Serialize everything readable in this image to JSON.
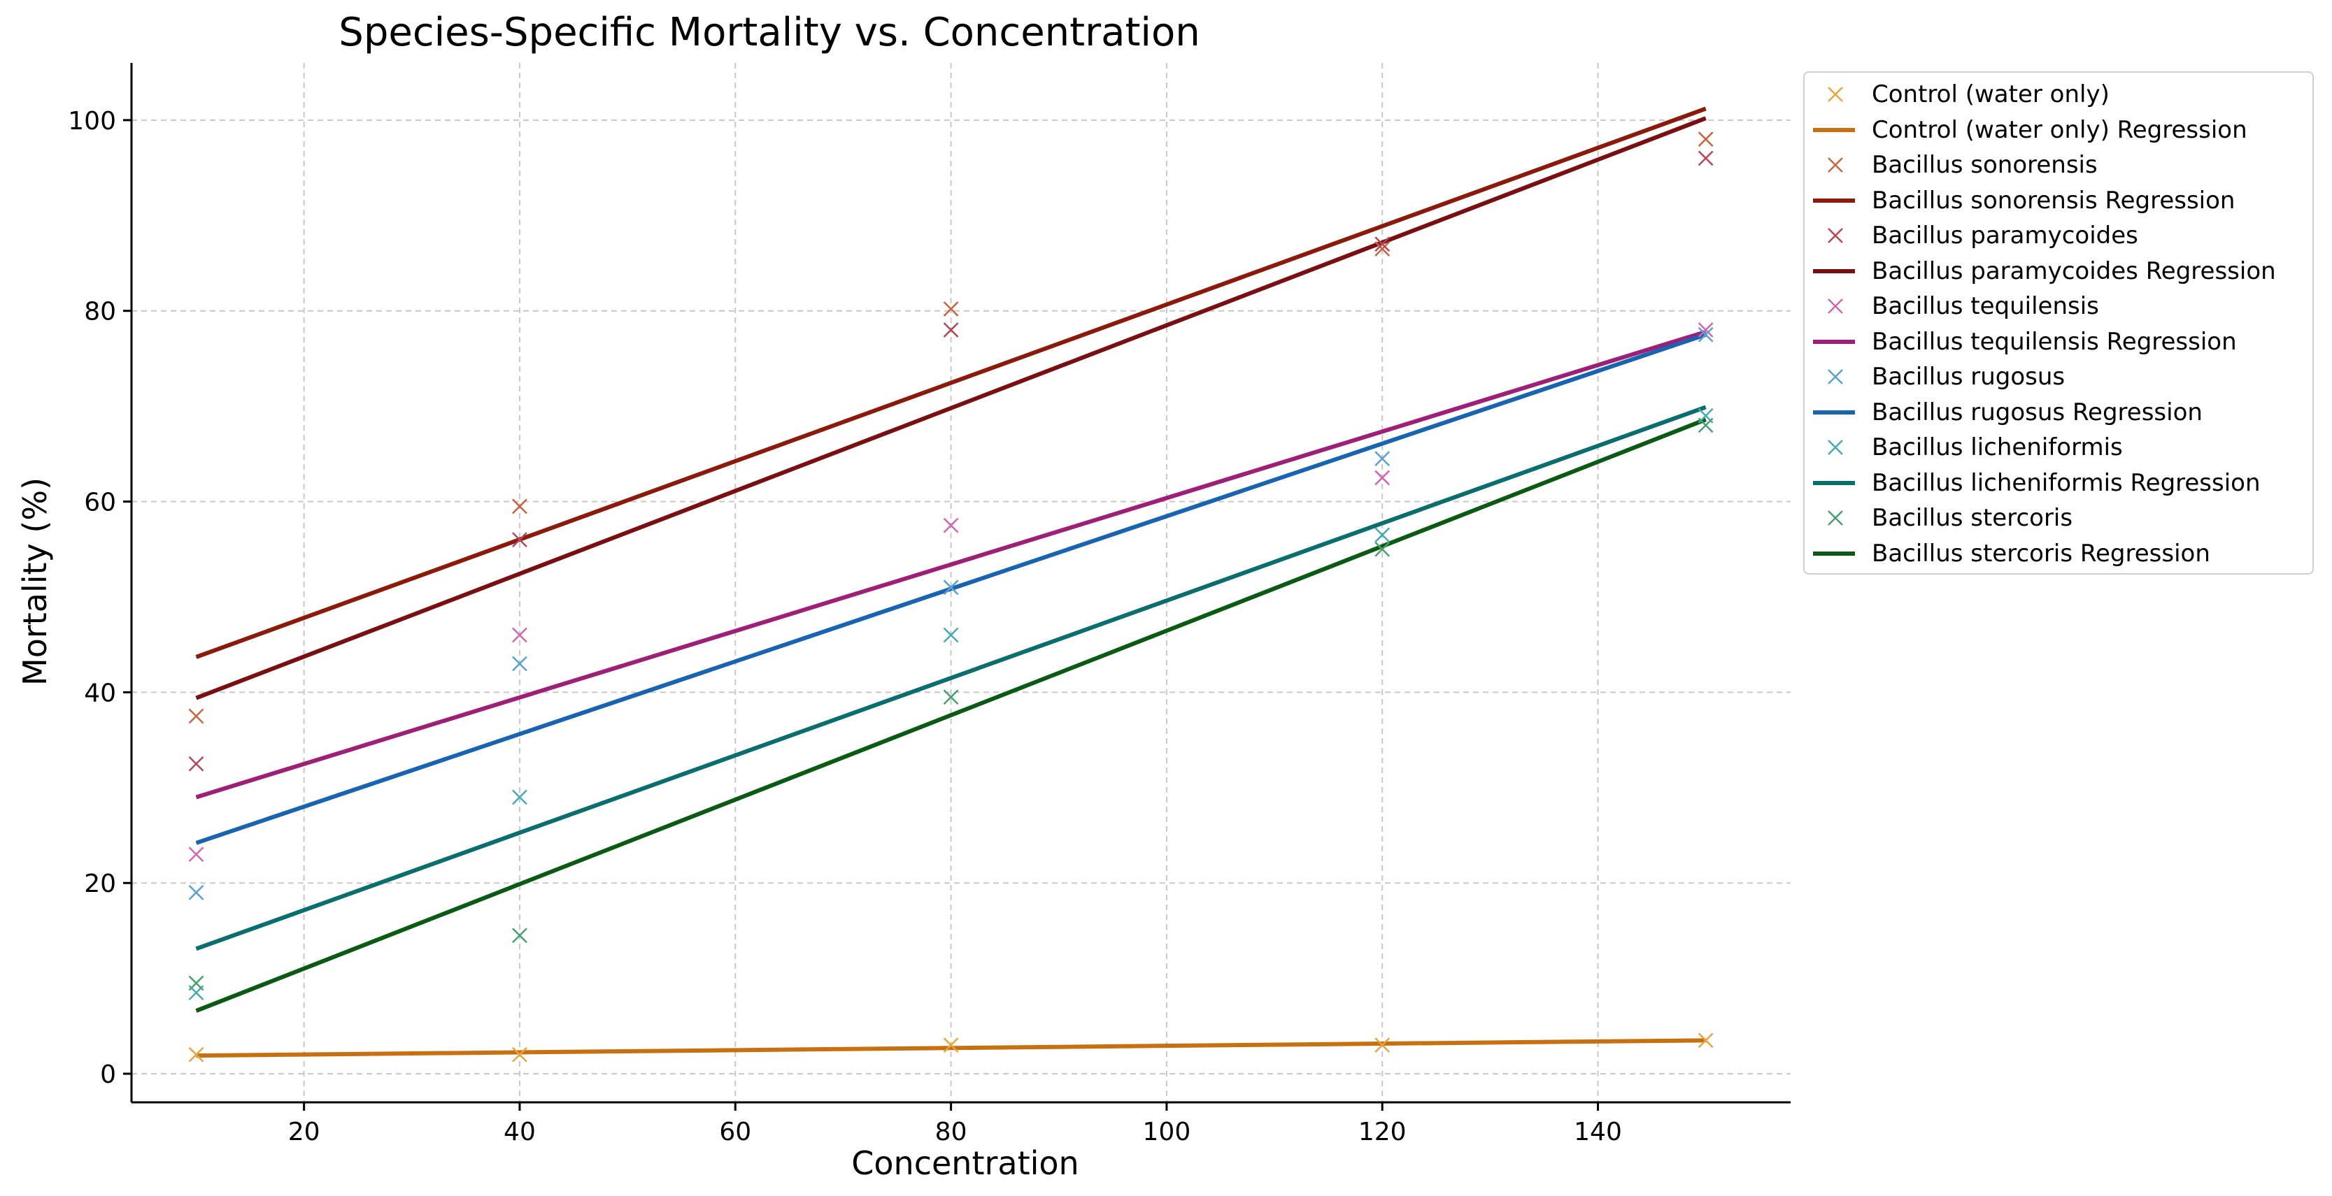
{
  "chart_data": {
    "type": "scatter",
    "title": "Species-Specific Mortality vs. Concentration",
    "xlabel": "Concentration",
    "ylabel": "Mortality (%)",
    "xlim": [
      4,
      158
    ],
    "ylim": [
      -3,
      106
    ],
    "xticks": [
      20,
      40,
      60,
      80,
      100,
      120,
      140
    ],
    "yticks": [
      0,
      20,
      40,
      60,
      80,
      100
    ],
    "grid": true,
    "legend_position": "outside-right",
    "x": [
      10,
      40,
      80,
      120,
      150
    ],
    "series": [
      {
        "name": "Control (water only)",
        "color": "#e8a33d",
        "line_color": "#c87010",
        "values": [
          2,
          2,
          3,
          3,
          3.5
        ],
        "regression": [
          1.9,
          3.5
        ]
      },
      {
        "name": "Bacillus sonorensis",
        "color": "#c8643c",
        "line_color": "#8b1a0a",
        "values": [
          37.5,
          59.5,
          80.2,
          86.5,
          98
        ],
        "regression": [
          43.7,
          101.2
        ]
      },
      {
        "name": "Bacillus paramycoides",
        "color": "#b4465a",
        "line_color": "#7a0f12",
        "values": [
          32.5,
          56,
          78,
          87,
          96
        ],
        "regression": [
          39.4,
          100.2
        ]
      },
      {
        "name": "Bacillus tequilensis",
        "color": "#d066b4",
        "line_color": "#9e1f78",
        "values": [
          23,
          46,
          57.5,
          62.5,
          78
        ],
        "regression": [
          29,
          77.8
        ]
      },
      {
        "name": "Bacillus rugosus",
        "color": "#5aa0d2",
        "line_color": "#1864b0",
        "values": [
          19,
          43,
          51,
          64.5,
          77.5
        ],
        "regression": [
          24.2,
          77.5
        ]
      },
      {
        "name": "Bacillus licheniformis",
        "color": "#46aab4",
        "line_color": "#0a6e6e",
        "values": [
          8.5,
          29,
          46,
          56.5,
          69
        ],
        "regression": [
          13.1,
          69.9
        ]
      },
      {
        "name": "Bacillus stercoris",
        "color": "#46a06e",
        "line_color": "#0a5a14",
        "values": [
          9.5,
          14.5,
          39.5,
          55,
          68
        ],
        "regression": [
          6.6,
          68.6
        ]
      }
    ],
    "legend_entries": [
      "Control (water only)",
      "Control (water only) Regression",
      "Bacillus sonorensis",
      "Bacillus sonorensis Regression",
      "Bacillus paramycoides",
      "Bacillus paramycoides Regression",
      "Bacillus tequilensis",
      "Bacillus tequilensis Regression",
      "Bacillus rugosus",
      "Bacillus rugosus Regression",
      "Bacillus licheniformis",
      "Bacillus licheniformis Regression",
      "Bacillus stercoris",
      "Bacillus stercoris Regression"
    ]
  }
}
